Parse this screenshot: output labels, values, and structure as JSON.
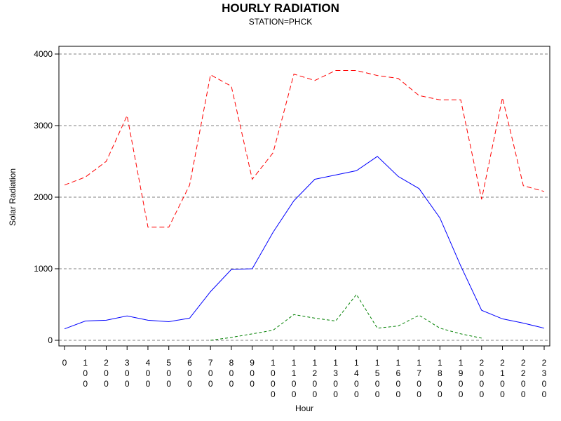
{
  "chart_data": {
    "type": "line",
    "title": "HOURLY RADIATION",
    "subtitle": "STATION=PHCK",
    "xlabel": "Hour",
    "ylabel": "Solar Radiation",
    "ylim": [
      0,
      4000
    ],
    "yticks": [
      0,
      1000,
      2000,
      3000,
      4000
    ],
    "grid": "horizontal dashed",
    "x_tick_labels": [
      "0",
      "100",
      "200",
      "300",
      "400",
      "500",
      "600",
      "700",
      "800",
      "900",
      "1000",
      "1100",
      "1200",
      "1300",
      "1400",
      "1500",
      "1600",
      "1700",
      "1800",
      "1900",
      "2000",
      "2100",
      "2200",
      "2300"
    ],
    "series": [
      {
        "color": "#ff0000",
        "style": "dashed",
        "x": [
          0,
          100,
          200,
          300,
          400,
          500,
          600,
          700,
          800,
          900,
          1000,
          1100,
          1200,
          1300,
          1400,
          1500,
          1600,
          1700,
          1800,
          1900,
          2000,
          2100,
          2200,
          2300
        ],
        "values": [
          2170,
          2280,
          2500,
          3140,
          1580,
          1580,
          2170,
          3710,
          3550,
          2250,
          2620,
          3720,
          3630,
          3770,
          3770,
          3700,
          3660,
          3420,
          3360,
          3360,
          1970,
          3390,
          2160,
          2080
        ]
      },
      {
        "color": "#0000ff",
        "style": "solid",
        "x": [
          0,
          100,
          200,
          300,
          400,
          500,
          600,
          700,
          800,
          900,
          1000,
          1100,
          1200,
          1300,
          1400,
          1500,
          1600,
          1700,
          1800,
          1900,
          2000,
          2100,
          2200,
          2300
        ],
        "values": [
          160,
          270,
          280,
          340,
          280,
          260,
          310,
          680,
          990,
          1000,
          1510,
          1950,
          2250,
          2310,
          2370,
          2570,
          2290,
          2120,
          1710,
          1040,
          420,
          300,
          240,
          170
        ]
      },
      {
        "color": "#008000",
        "style": "dotted-dashed",
        "x": [
          700,
          800,
          900,
          1000,
          1100,
          1200,
          1300,
          1400,
          1500,
          1600,
          1700,
          1800,
          1900,
          2000
        ],
        "values": [
          0,
          40,
          90,
          140,
          360,
          310,
          270,
          640,
          170,
          200,
          350,
          170,
          90,
          30
        ]
      }
    ]
  }
}
